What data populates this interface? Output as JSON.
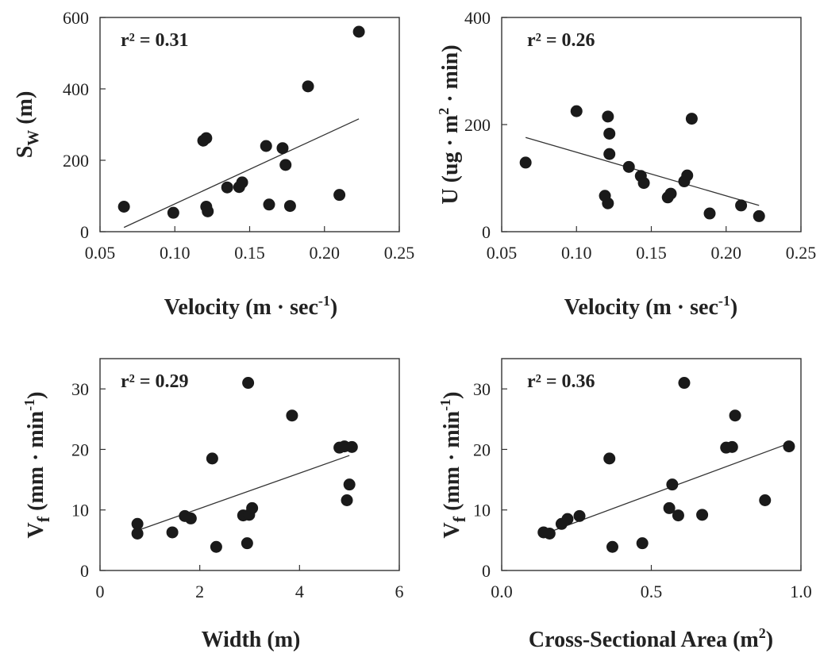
{
  "chart_data": [
    {
      "type": "scatter",
      "annotation": "r² = 0.31",
      "xlabel": "Velocity (m · sec⁻¹)",
      "ylabel": "Sw (m)",
      "xlim": [
        0.05,
        0.25
      ],
      "ylim": [
        0,
        600
      ],
      "xticks": [
        "0.05",
        "0.10",
        "0.15",
        "0.20",
        "0.25"
      ],
      "yticks": [
        "0",
        "200",
        "400",
        "600"
      ],
      "points": [
        [
          0.066,
          70
        ],
        [
          0.099,
          53
        ],
        [
          0.119,
          255
        ],
        [
          0.121,
          262
        ],
        [
          0.121,
          70
        ],
        [
          0.122,
          57
        ],
        [
          0.135,
          124
        ],
        [
          0.143,
          125
        ],
        [
          0.145,
          138
        ],
        [
          0.161,
          240
        ],
        [
          0.163,
          76
        ],
        [
          0.172,
          234
        ],
        [
          0.174,
          187
        ],
        [
          0.177,
          72
        ],
        [
          0.189,
          407
        ],
        [
          0.21,
          103
        ],
        [
          0.223,
          560
        ]
      ],
      "fit": [
        [
          0.066,
          12
        ],
        [
          0.223,
          316
        ]
      ]
    },
    {
      "type": "scatter",
      "annotation": "r² = 0.26",
      "xlabel": "Velocity (m · sec⁻¹)",
      "ylabel": "U (ug · m² · min)",
      "xlim": [
        0.05,
        0.25
      ],
      "ylim": [
        0,
        400
      ],
      "xticks": [
        "0.05",
        "0.10",
        "0.15",
        "0.20",
        "0.25"
      ],
      "yticks": [
        "0",
        "200",
        "400"
      ],
      "points": [
        [
          0.066,
          129
        ],
        [
          0.1,
          225
        ],
        [
          0.119,
          67
        ],
        [
          0.121,
          215
        ],
        [
          0.121,
          53
        ],
        [
          0.122,
          183
        ],
        [
          0.122,
          145
        ],
        [
          0.135,
          121
        ],
        [
          0.143,
          104
        ],
        [
          0.145,
          91
        ],
        [
          0.161,
          64
        ],
        [
          0.163,
          71
        ],
        [
          0.172,
          94
        ],
        [
          0.174,
          105
        ],
        [
          0.177,
          211
        ],
        [
          0.189,
          34
        ],
        [
          0.21,
          49
        ],
        [
          0.222,
          29
        ]
      ],
      "fit": [
        [
          0.066,
          176
        ],
        [
          0.222,
          49
        ]
      ]
    },
    {
      "type": "scatter",
      "annotation": "r² = 0.29",
      "xlabel": "Width (m)",
      "ylabel": "Vf (mm · min⁻¹)",
      "xlim": [
        0,
        6
      ],
      "ylim": [
        0,
        35
      ],
      "xticks": [
        "0",
        "2",
        "4",
        "6"
      ],
      "yticks": [
        "0",
        "10",
        "20",
        "30"
      ],
      "points": [
        [
          0.75,
          7.7
        ],
        [
          0.75,
          6.1
        ],
        [
          1.45,
          6.3
        ],
        [
          1.7,
          9.0
        ],
        [
          1.82,
          8.6
        ],
        [
          2.25,
          18.5
        ],
        [
          2.33,
          3.9
        ],
        [
          2.87,
          9.1
        ],
        [
          2.95,
          4.5
        ],
        [
          2.97,
          31.0
        ],
        [
          2.99,
          9.2
        ],
        [
          3.05,
          10.3
        ],
        [
          3.85,
          25.6
        ],
        [
          4.8,
          20.3
        ],
        [
          4.9,
          20.5
        ],
        [
          4.95,
          11.6
        ],
        [
          5.0,
          14.2
        ],
        [
          5.05,
          20.4
        ]
      ],
      "fit": [
        [
          0.75,
          6.6
        ],
        [
          5.0,
          19.0
        ]
      ]
    },
    {
      "type": "scatter",
      "annotation": "r² = 0.36",
      "xlabel": "Cross-Sectional Area (m²)",
      "ylabel": "Vf (mm · min⁻¹)",
      "xlim": [
        0.0,
        1.0
      ],
      "ylim": [
        0,
        35
      ],
      "xticks": [
        "0.0",
        "0.5",
        "1.0"
      ],
      "yticks": [
        "0",
        "10",
        "20",
        "30"
      ],
      "points": [
        [
          0.14,
          6.3
        ],
        [
          0.16,
          6.1
        ],
        [
          0.2,
          7.7
        ],
        [
          0.22,
          8.5
        ],
        [
          0.26,
          9.0
        ],
        [
          0.36,
          18.5
        ],
        [
          0.37,
          3.9
        ],
        [
          0.47,
          4.5
        ],
        [
          0.56,
          10.3
        ],
        [
          0.57,
          14.2
        ],
        [
          0.59,
          9.1
        ],
        [
          0.61,
          31.0
        ],
        [
          0.67,
          9.2
        ],
        [
          0.75,
          20.3
        ],
        [
          0.77,
          20.4
        ],
        [
          0.78,
          25.6
        ],
        [
          0.88,
          11.6
        ],
        [
          0.96,
          20.5
        ]
      ],
      "fit": [
        [
          0.14,
          6.0
        ],
        [
          0.96,
          21.0
        ]
      ]
    }
  ]
}
